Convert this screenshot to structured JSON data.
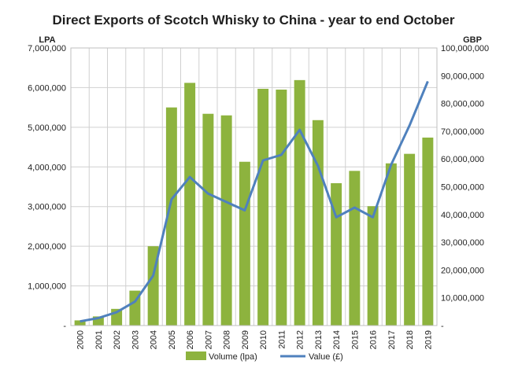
{
  "chart_data": {
    "type": "bar",
    "title": "Direct Exports of Scotch Whisky to China -  year to end October",
    "y_left_label": "LPA",
    "y_right_label": "GBP",
    "categories": [
      "2000",
      "2001",
      "2002",
      "2003",
      "2004",
      "2005",
      "2006",
      "2007",
      "2008",
      "2009",
      "2010",
      "2011",
      "2012",
      "2013",
      "2014",
      "2015",
      "2016",
      "2017",
      "2018",
      "2019"
    ],
    "series": [
      {
        "name": "Volume (lpa)",
        "type": "bar",
        "axis": "left",
        "color": "#8DB33E",
        "values": [
          130000,
          230000,
          420000,
          880000,
          2000000,
          5500000,
          6120000,
          5340000,
          5300000,
          4130000,
          5970000,
          5950000,
          6190000,
          5180000,
          3590000,
          3900000,
          3010000,
          4090000,
          4330000,
          4740000
        ]
      },
      {
        "name": "Value (£)",
        "type": "line",
        "axis": "right",
        "color": "#4F81BD",
        "values": [
          1500000,
          2700000,
          4800000,
          8600000,
          18000000,
          45500000,
          53500000,
          47500000,
          44500000,
          41500000,
          59500000,
          61500000,
          70500000,
          57500000,
          39000000,
          42500000,
          39000000,
          58000000,
          72000000,
          88000000
        ]
      }
    ],
    "y_left_ticks": [
      "-",
      "1,000,000",
      "2,000,000",
      "3,000,000",
      "4,000,000",
      "5,000,000",
      "6,000,000",
      "7,000,000"
    ],
    "y_left_range": [
      0,
      7000000
    ],
    "y_right_ticks": [
      "-",
      "10,000,000",
      "20,000,000",
      "30,000,000",
      "40,000,000",
      "50,000,000",
      "60,000,000",
      "70,000,000",
      "80,000,000",
      "90,000,000",
      "100,000,000"
    ],
    "y_right_range": [
      0,
      100000000
    ],
    "grid": true,
    "legend_position": "bottom"
  }
}
